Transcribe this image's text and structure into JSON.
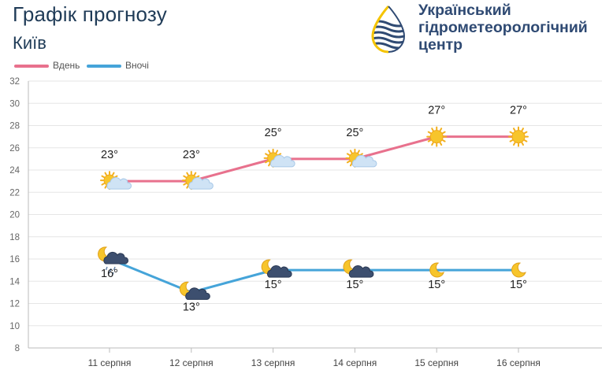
{
  "header": {
    "title": "Графік прогнозу",
    "city": "Київ",
    "org_line1": "Український",
    "org_line2": "гідрометеорологічний",
    "org_line3": "центр"
  },
  "colors": {
    "day": "#e8718d",
    "night": "#45a4d9",
    "sun": "#f7c52b",
    "cloud_light": "#cfe3f5",
    "cloud_dark": "#3d4f6f"
  },
  "chart_data": {
    "type": "line",
    "categories": [
      "11 серпня",
      "12 серпня",
      "13 серпня",
      "14 серпня",
      "15 серпня",
      "16 серпня"
    ],
    "series": [
      {
        "name": "Вдень",
        "values": [
          23,
          23,
          25,
          25,
          27,
          27
        ],
        "labels": [
          "23°",
          "23°",
          "25°",
          "25°",
          "27°",
          "27°"
        ],
        "icons": [
          "sun-cloud-icon",
          "sun-cloud-icon",
          "sun-cloud-icon",
          "sun-cloud-icon",
          "sun-icon",
          "sun-icon"
        ]
      },
      {
        "name": "Вночі",
        "values": [
          16,
          13,
          15,
          15,
          15,
          15
        ],
        "labels": [
          "16°",
          "13°",
          "15°",
          "15°",
          "15°",
          "15°"
        ],
        "icons": [
          "moon-rain-icon",
          "moon-cloud-icon",
          "moon-cloud-icon",
          "moon-cloud-icon",
          "moon-icon",
          "moon-icon"
        ]
      }
    ],
    "yticks": [
      8,
      10,
      12,
      14,
      16,
      18,
      20,
      22,
      24,
      26,
      28,
      30,
      32
    ],
    "ylim": [
      8,
      32
    ],
    "xlabel": "",
    "ylabel": "",
    "grid": true,
    "legend": "top-left"
  }
}
